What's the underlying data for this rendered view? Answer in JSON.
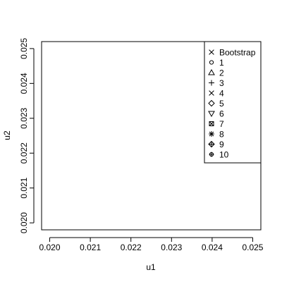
{
  "chart_data": {
    "type": "scatter",
    "title": "",
    "xlabel": "u1",
    "ylabel": "u2",
    "xlim": [
      0.0198,
      0.0252
    ],
    "ylim": [
      0.0198,
      0.0252
    ],
    "x_ticks": [
      0.02,
      0.021,
      0.022,
      0.023,
      0.024,
      0.025
    ],
    "x_tick_labels": [
      "0.020",
      "0.021",
      "0.022",
      "0.023",
      "0.024",
      "0.025"
    ],
    "y_ticks": [
      0.02,
      0.021,
      0.022,
      0.023,
      0.024,
      0.025
    ],
    "y_tick_labels": [
      "0.020",
      "0.021",
      "0.022",
      "0.023",
      "0.024",
      "0.025"
    ],
    "grid": false,
    "legend_position": "top-right",
    "series": [
      {
        "name": "Bootstrap",
        "symbol": "cross-x",
        "points": []
      },
      {
        "name": "1",
        "symbol": "circle",
        "points": []
      },
      {
        "name": "2",
        "symbol": "triangle-up",
        "points": []
      },
      {
        "name": "3",
        "symbol": "plus",
        "points": []
      },
      {
        "name": "4",
        "symbol": "cross-x",
        "points": []
      },
      {
        "name": "5",
        "symbol": "diamond",
        "points": []
      },
      {
        "name": "6",
        "symbol": "triangle-down",
        "points": []
      },
      {
        "name": "7",
        "symbol": "square-x",
        "points": []
      },
      {
        "name": "8",
        "symbol": "asterisk",
        "points": []
      },
      {
        "name": "9",
        "symbol": "diamond-plus",
        "points": []
      },
      {
        "name": "10",
        "symbol": "circle-plus",
        "points": []
      }
    ]
  }
}
